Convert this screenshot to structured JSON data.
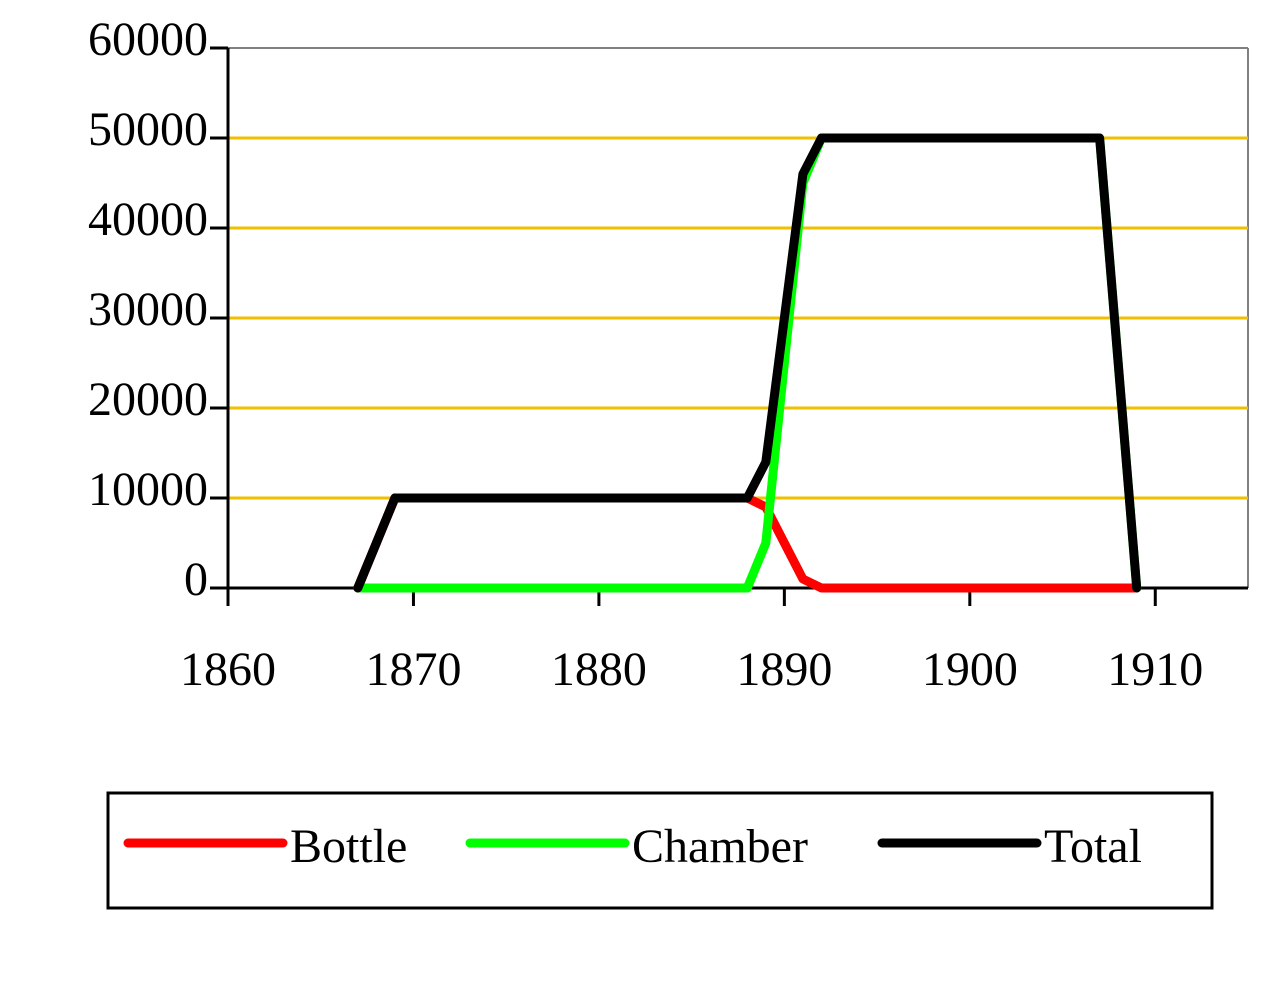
{
  "chart_data": {
    "type": "line",
    "x": [
      1867,
      1868,
      1869,
      1870,
      1871,
      1872,
      1873,
      1874,
      1875,
      1876,
      1877,
      1878,
      1879,
      1880,
      1881,
      1882,
      1883,
      1884,
      1885,
      1886,
      1887,
      1888,
      1889,
      1890,
      1891,
      1892,
      1893,
      1894,
      1895,
      1896,
      1897,
      1898,
      1899,
      1900,
      1901,
      1902,
      1903,
      1904,
      1905,
      1906,
      1907,
      1908,
      1909
    ],
    "series": [
      {
        "name": "Bottle",
        "color": "#ff0000",
        "values": [
          0,
          5000,
          10000,
          10000,
          10000,
          10000,
          10000,
          10000,
          10000,
          10000,
          10000,
          10000,
          10000,
          10000,
          10000,
          10000,
          10000,
          10000,
          10000,
          10000,
          10000,
          10000,
          9000,
          5000,
          1000,
          0,
          0,
          0,
          0,
          0,
          0,
          0,
          0,
          0,
          0,
          0,
          0,
          0,
          0,
          0,
          0,
          0,
          0
        ]
      },
      {
        "name": "Chamber",
        "color": "#00ff00",
        "values": [
          0,
          0,
          0,
          0,
          0,
          0,
          0,
          0,
          0,
          0,
          0,
          0,
          0,
          0,
          0,
          0,
          0,
          0,
          0,
          0,
          0,
          0,
          5000,
          25000,
          45000,
          50000,
          50000,
          50000,
          50000,
          50000,
          50000,
          50000,
          50000,
          50000,
          50000,
          50000,
          50000,
          50000,
          50000,
          50000,
          50000,
          25000,
          0
        ]
      },
      {
        "name": "Total",
        "color": "#000000",
        "values": [
          0,
          5000,
          10000,
          10000,
          10000,
          10000,
          10000,
          10000,
          10000,
          10000,
          10000,
          10000,
          10000,
          10000,
          10000,
          10000,
          10000,
          10000,
          10000,
          10000,
          10000,
          10000,
          14000,
          30000,
          46000,
          50000,
          50000,
          50000,
          50000,
          50000,
          50000,
          50000,
          50000,
          50000,
          50000,
          50000,
          50000,
          50000,
          50000,
          50000,
          50000,
          25000,
          0
        ]
      }
    ],
    "xlim": [
      1860,
      1915
    ],
    "xticks": [
      1860,
      1870,
      1880,
      1890,
      1900,
      1910
    ],
    "ylim": [
      0,
      60000
    ],
    "yticks": [
      0,
      10000,
      20000,
      30000,
      40000,
      50000,
      60000
    ],
    "grid": true,
    "grid_color": "#f0c000",
    "legend": "bottom"
  }
}
